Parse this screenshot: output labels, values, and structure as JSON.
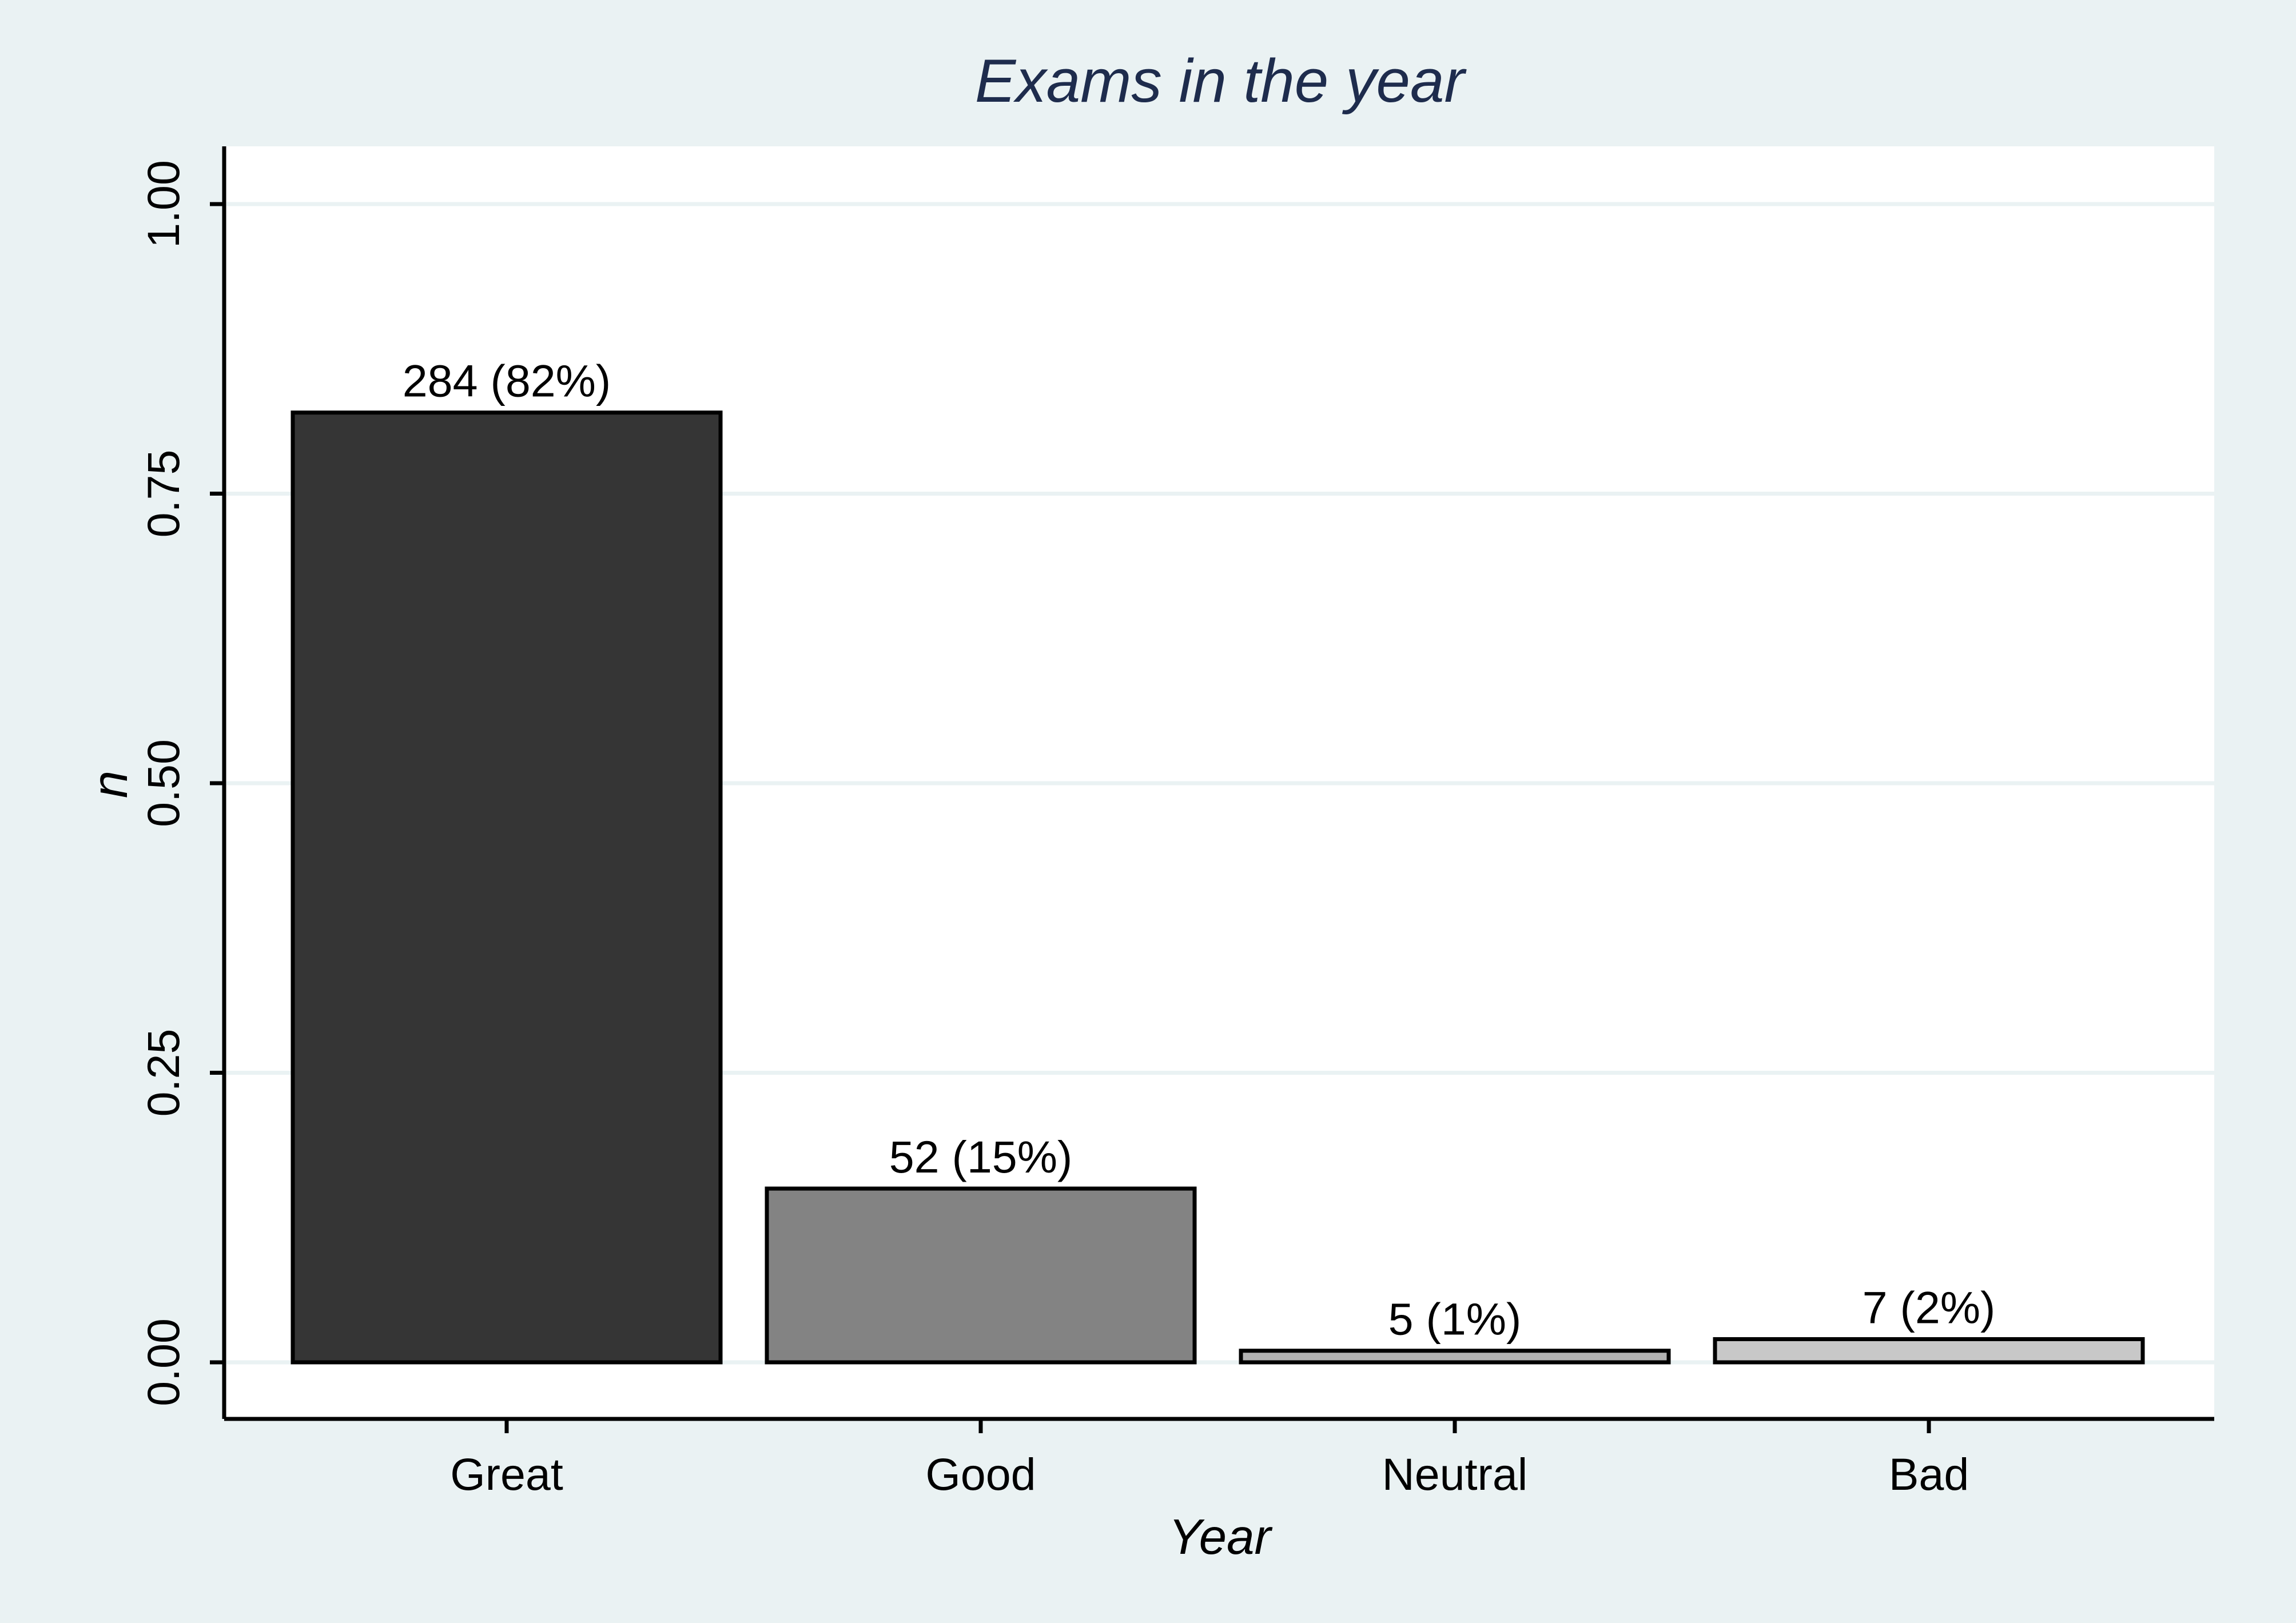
{
  "chart_data": {
    "type": "bar",
    "title": "Exams in the year",
    "xlabel": "Year",
    "ylabel": "n",
    "categories": [
      "Great",
      "Good",
      "Neutral",
      "Bad"
    ],
    "values": [
      0.82,
      0.15,
      0.01,
      0.02
    ],
    "bar_labels": [
      "284 (82%)",
      "52 (15%)",
      "5 (1%)",
      "7 (2%)"
    ],
    "bar_colors": [
      "#353535",
      "#838383",
      "#b2b2b2",
      "#c8c8c8"
    ],
    "ylim": [
      0,
      1.05
    ],
    "yticks": [
      0,
      0.25,
      0.5,
      0.75,
      1.0
    ],
    "ytick_labels": [
      "0.00",
      "0.25",
      "0.50",
      "0.75",
      "1.00"
    ],
    "grid": true,
    "legend": "none",
    "colors": {
      "background": "#eaf2f3",
      "plot_background": "#ffffff",
      "gridline": "#eaf2f3",
      "title": "#1e2c4d"
    }
  }
}
